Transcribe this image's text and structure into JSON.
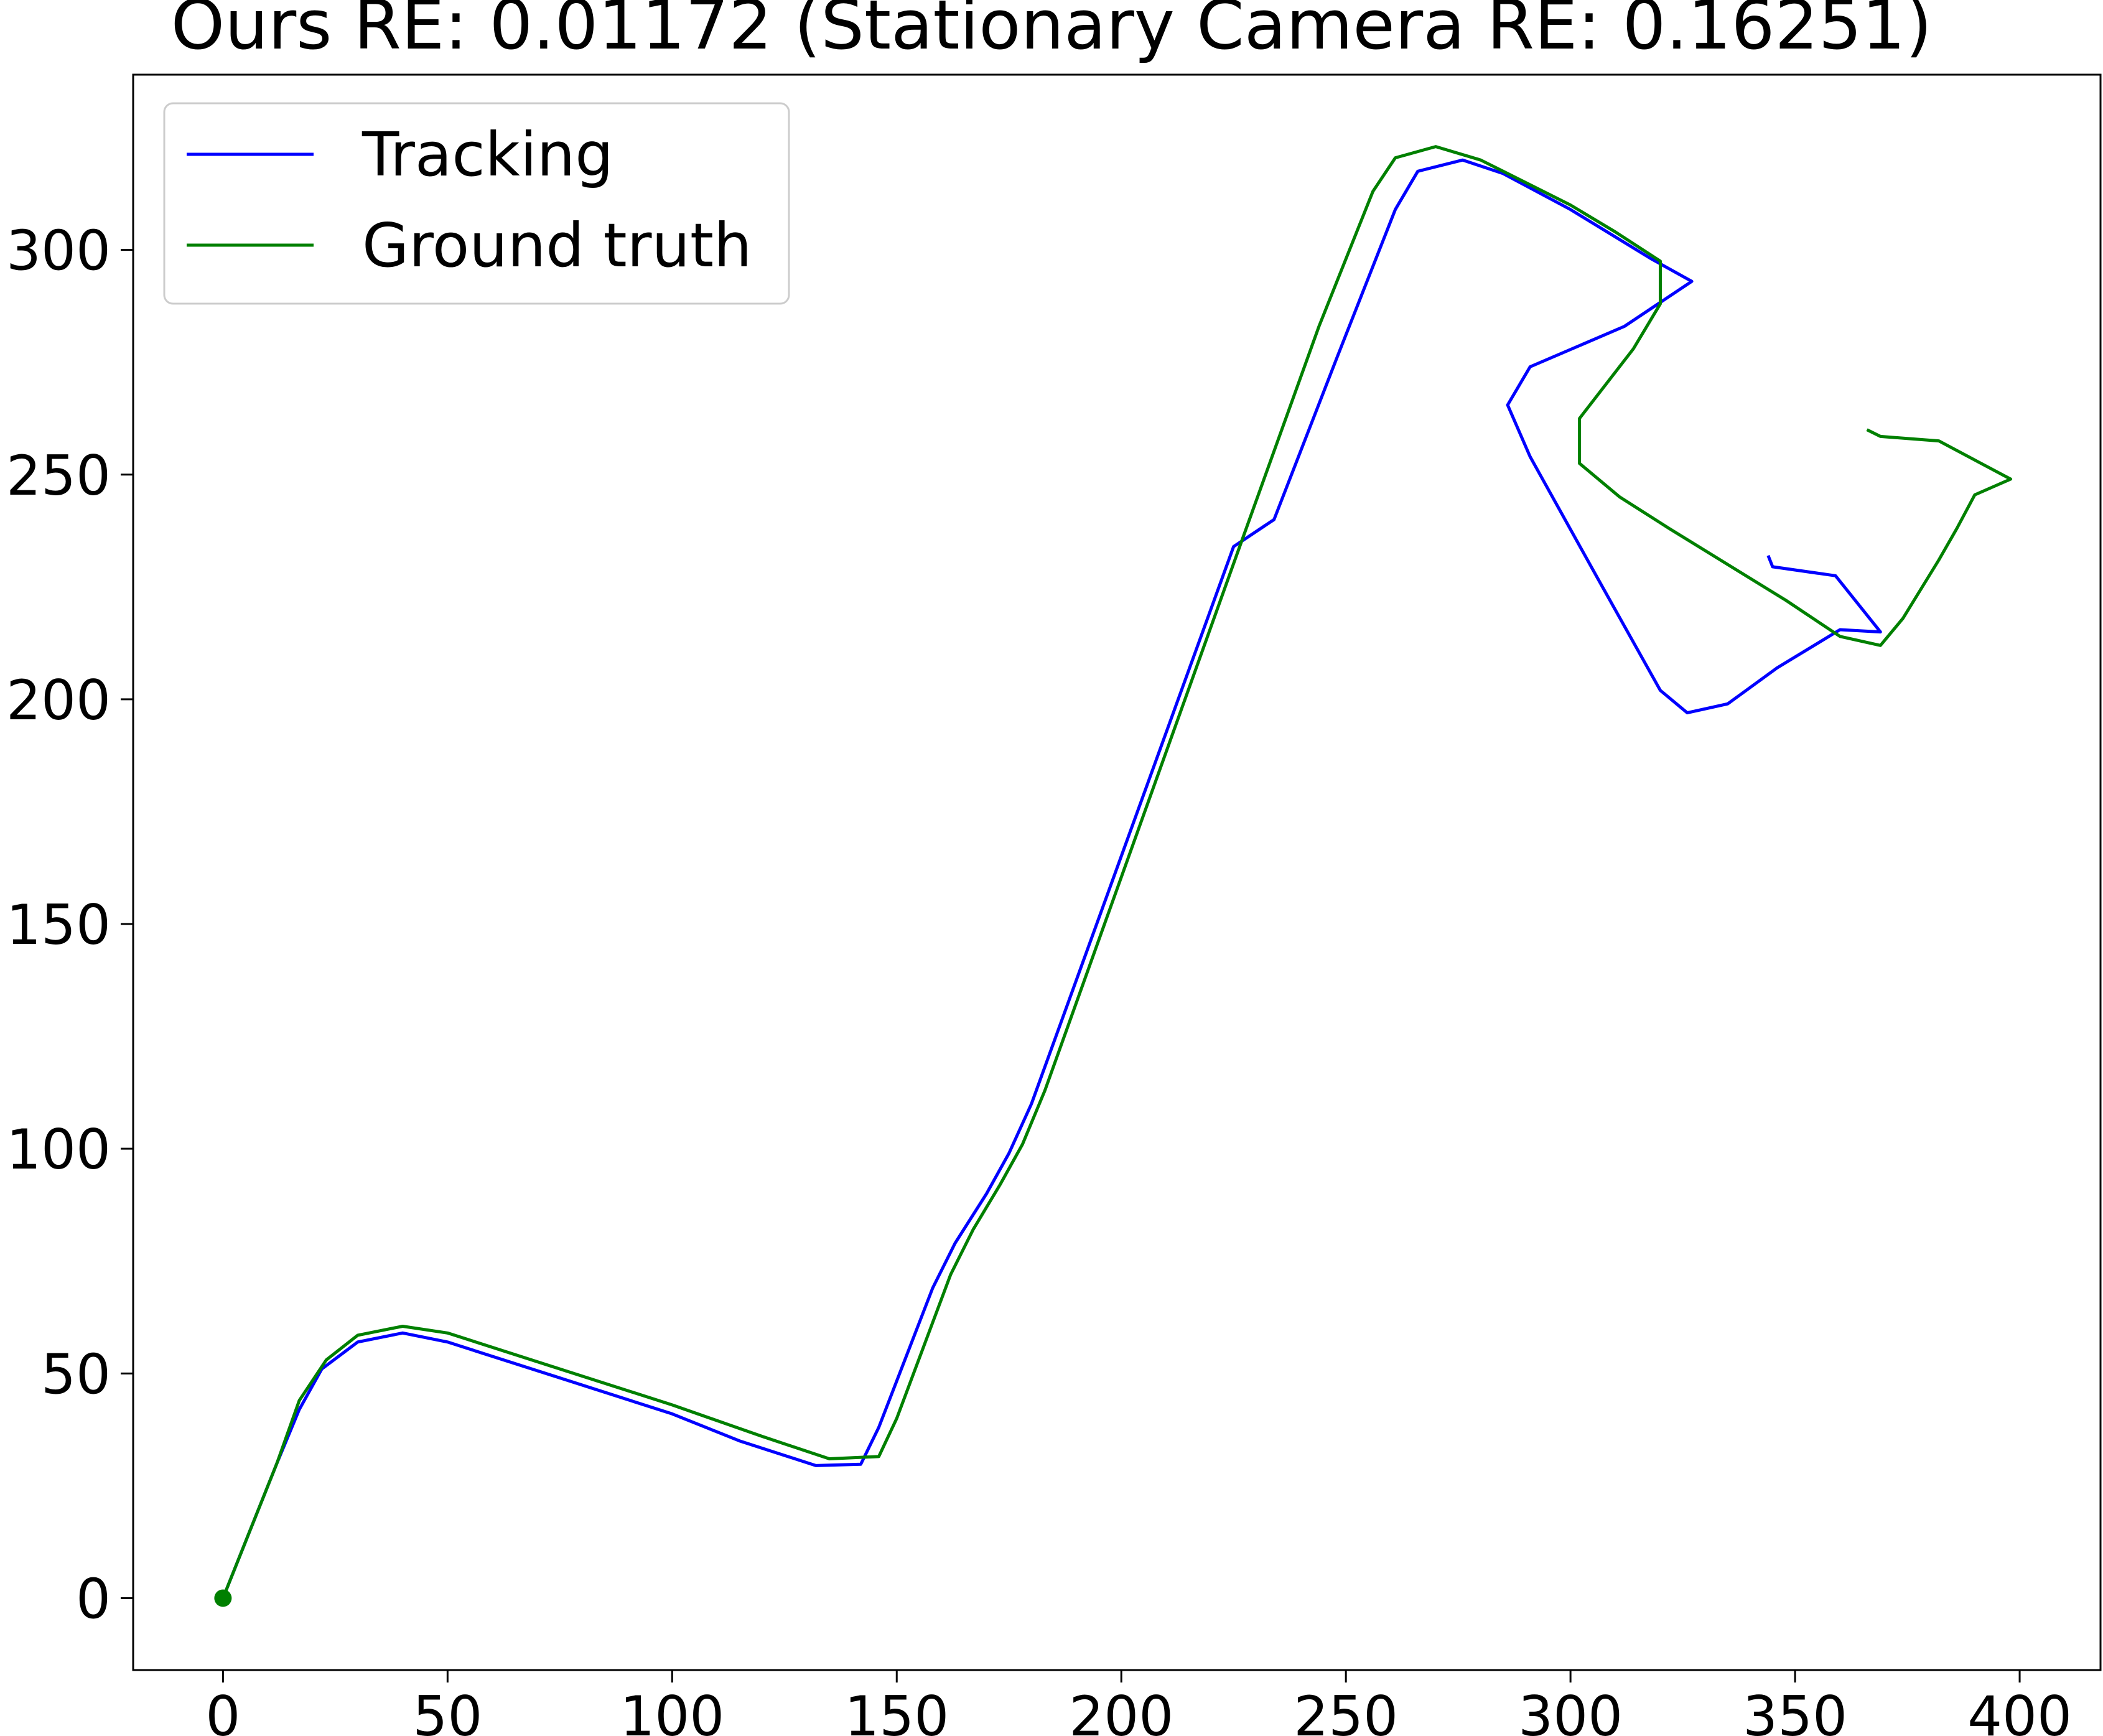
{
  "chart_data": {
    "type": "line",
    "title": "Ours RE: 0.01172 (Stationary Camera RE: 0.16251)",
    "xlabel": "",
    "ylabel": "",
    "xlim": [
      -20,
      418
    ],
    "ylim": [
      -16,
      339
    ],
    "xticks": [
      0,
      50,
      100,
      150,
      200,
      250,
      300,
      350,
      400
    ],
    "yticks": [
      0,
      50,
      100,
      150,
      200,
      250,
      300
    ],
    "grid": false,
    "legend": {
      "placement": "upper-left"
    },
    "series": [
      {
        "name": "Tracking",
        "color": "#0000ff",
        "points": [
          [
            0,
            0
          ],
          [
            6,
            15
          ],
          [
            12,
            30
          ],
          [
            17,
            42
          ],
          [
            22,
            51
          ],
          [
            30,
            57
          ],
          [
            40,
            59
          ],
          [
            50,
            57
          ],
          [
            75,
            49
          ],
          [
            100,
            41
          ],
          [
            115,
            35
          ],
          [
            132,
            29.5
          ],
          [
            142,
            29.8
          ],
          [
            146,
            38
          ],
          [
            158,
            69
          ],
          [
            163,
            79
          ],
          [
            170,
            90
          ],
          [
            175,
            99
          ],
          [
            180,
            110
          ],
          [
            225,
            234
          ],
          [
            234,
            240
          ],
          [
            248,
            276
          ],
          [
            261,
            309
          ],
          [
            266,
            317.5
          ],
          [
            276,
            320
          ],
          [
            285,
            317
          ],
          [
            300,
            309
          ],
          [
            318,
            298
          ],
          [
            327,
            293
          ],
          [
            312,
            283
          ],
          [
            291,
            274
          ],
          [
            286,
            265.5
          ],
          [
            291,
            254
          ],
          [
            306,
            227
          ],
          [
            320,
            202
          ],
          [
            326,
            197
          ],
          [
            335,
            199
          ],
          [
            346,
            207
          ],
          [
            360,
            215.5
          ],
          [
            369,
            215
          ],
          [
            359,
            227.5
          ],
          [
            345,
            229.5
          ],
          [
            344,
            232
          ]
        ]
      },
      {
        "name": "Ground truth",
        "color": "#008000",
        "points": [
          [
            0,
            0
          ],
          [
            6,
            15
          ],
          [
            12,
            30
          ],
          [
            17,
            44
          ],
          [
            23,
            53
          ],
          [
            30,
            58.5
          ],
          [
            40,
            60.5
          ],
          [
            50,
            59
          ],
          [
            75,
            51
          ],
          [
            100,
            43
          ],
          [
            120,
            36
          ],
          [
            135,
            31
          ],
          [
            146,
            31.5
          ],
          [
            150,
            40
          ],
          [
            162,
            72
          ],
          [
            167,
            82
          ],
          [
            173,
            92
          ],
          [
            178,
            101
          ],
          [
            183,
            113
          ],
          [
            226,
            233
          ],
          [
            244,
            283
          ],
          [
            256,
            313
          ],
          [
            261,
            320.5
          ],
          [
            270,
            323
          ],
          [
            280,
            320
          ],
          [
            300,
            310
          ],
          [
            310,
            304
          ],
          [
            320,
            297.5
          ],
          [
            320,
            288
          ],
          [
            314,
            278
          ],
          [
            302,
            262.5
          ],
          [
            302,
            252.5
          ],
          [
            311,
            245
          ],
          [
            322,
            238
          ],
          [
            348,
            222
          ],
          [
            360,
            214
          ],
          [
            369,
            212
          ],
          [
            374,
            218
          ],
          [
            382,
            231
          ],
          [
            386,
            238
          ],
          [
            390,
            245.5
          ],
          [
            398,
            249
          ],
          [
            382,
            257.5
          ],
          [
            369,
            258.5
          ],
          [
            366,
            260
          ]
        ]
      }
    ],
    "start_marker": {
      "x": 0,
      "y": 0,
      "color": "#008000"
    }
  }
}
